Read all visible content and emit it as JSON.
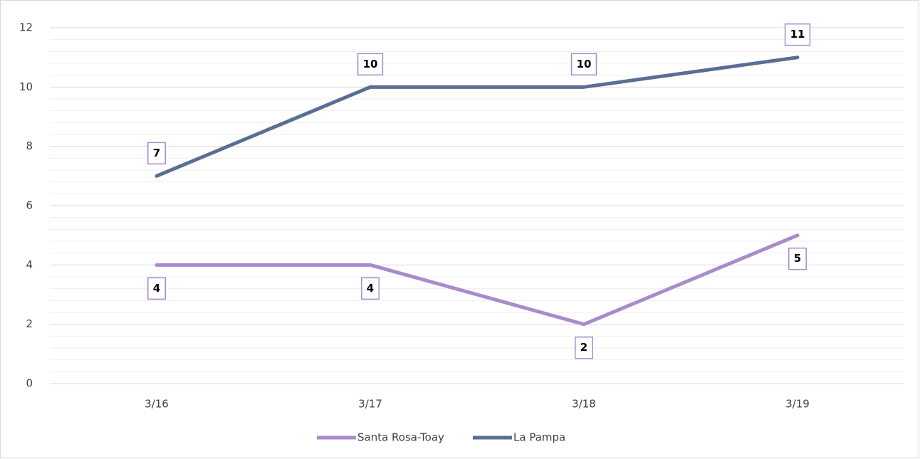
{
  "chart_data": {
    "type": "line",
    "categories": [
      "3/16",
      "3/17",
      "3/18",
      "3/19"
    ],
    "series": [
      {
        "name": "Santa Rosa-Toay",
        "color": "#a98bcb",
        "values": [
          4,
          4,
          2,
          5
        ],
        "label_position": "below"
      },
      {
        "name": "La Pampa",
        "color": "#5a6e95",
        "values": [
          7,
          10,
          10,
          11
        ],
        "label_position": "above"
      }
    ],
    "ylim": [
      0,
      12
    ],
    "yticks": [
      0,
      2,
      4,
      6,
      8,
      10,
      12
    ],
    "yminorticks": [
      0.4,
      0.8,
      1.2,
      1.6,
      2.4,
      2.8,
      3.2,
      3.6,
      4.4,
      4.8,
      5.2,
      5.6,
      6.4,
      6.8,
      7.2,
      7.6,
      8.4,
      8.8,
      9.2,
      9.6,
      10.4,
      10.8,
      11.2,
      11.6
    ],
    "grid": true,
    "legend": "bottom"
  }
}
